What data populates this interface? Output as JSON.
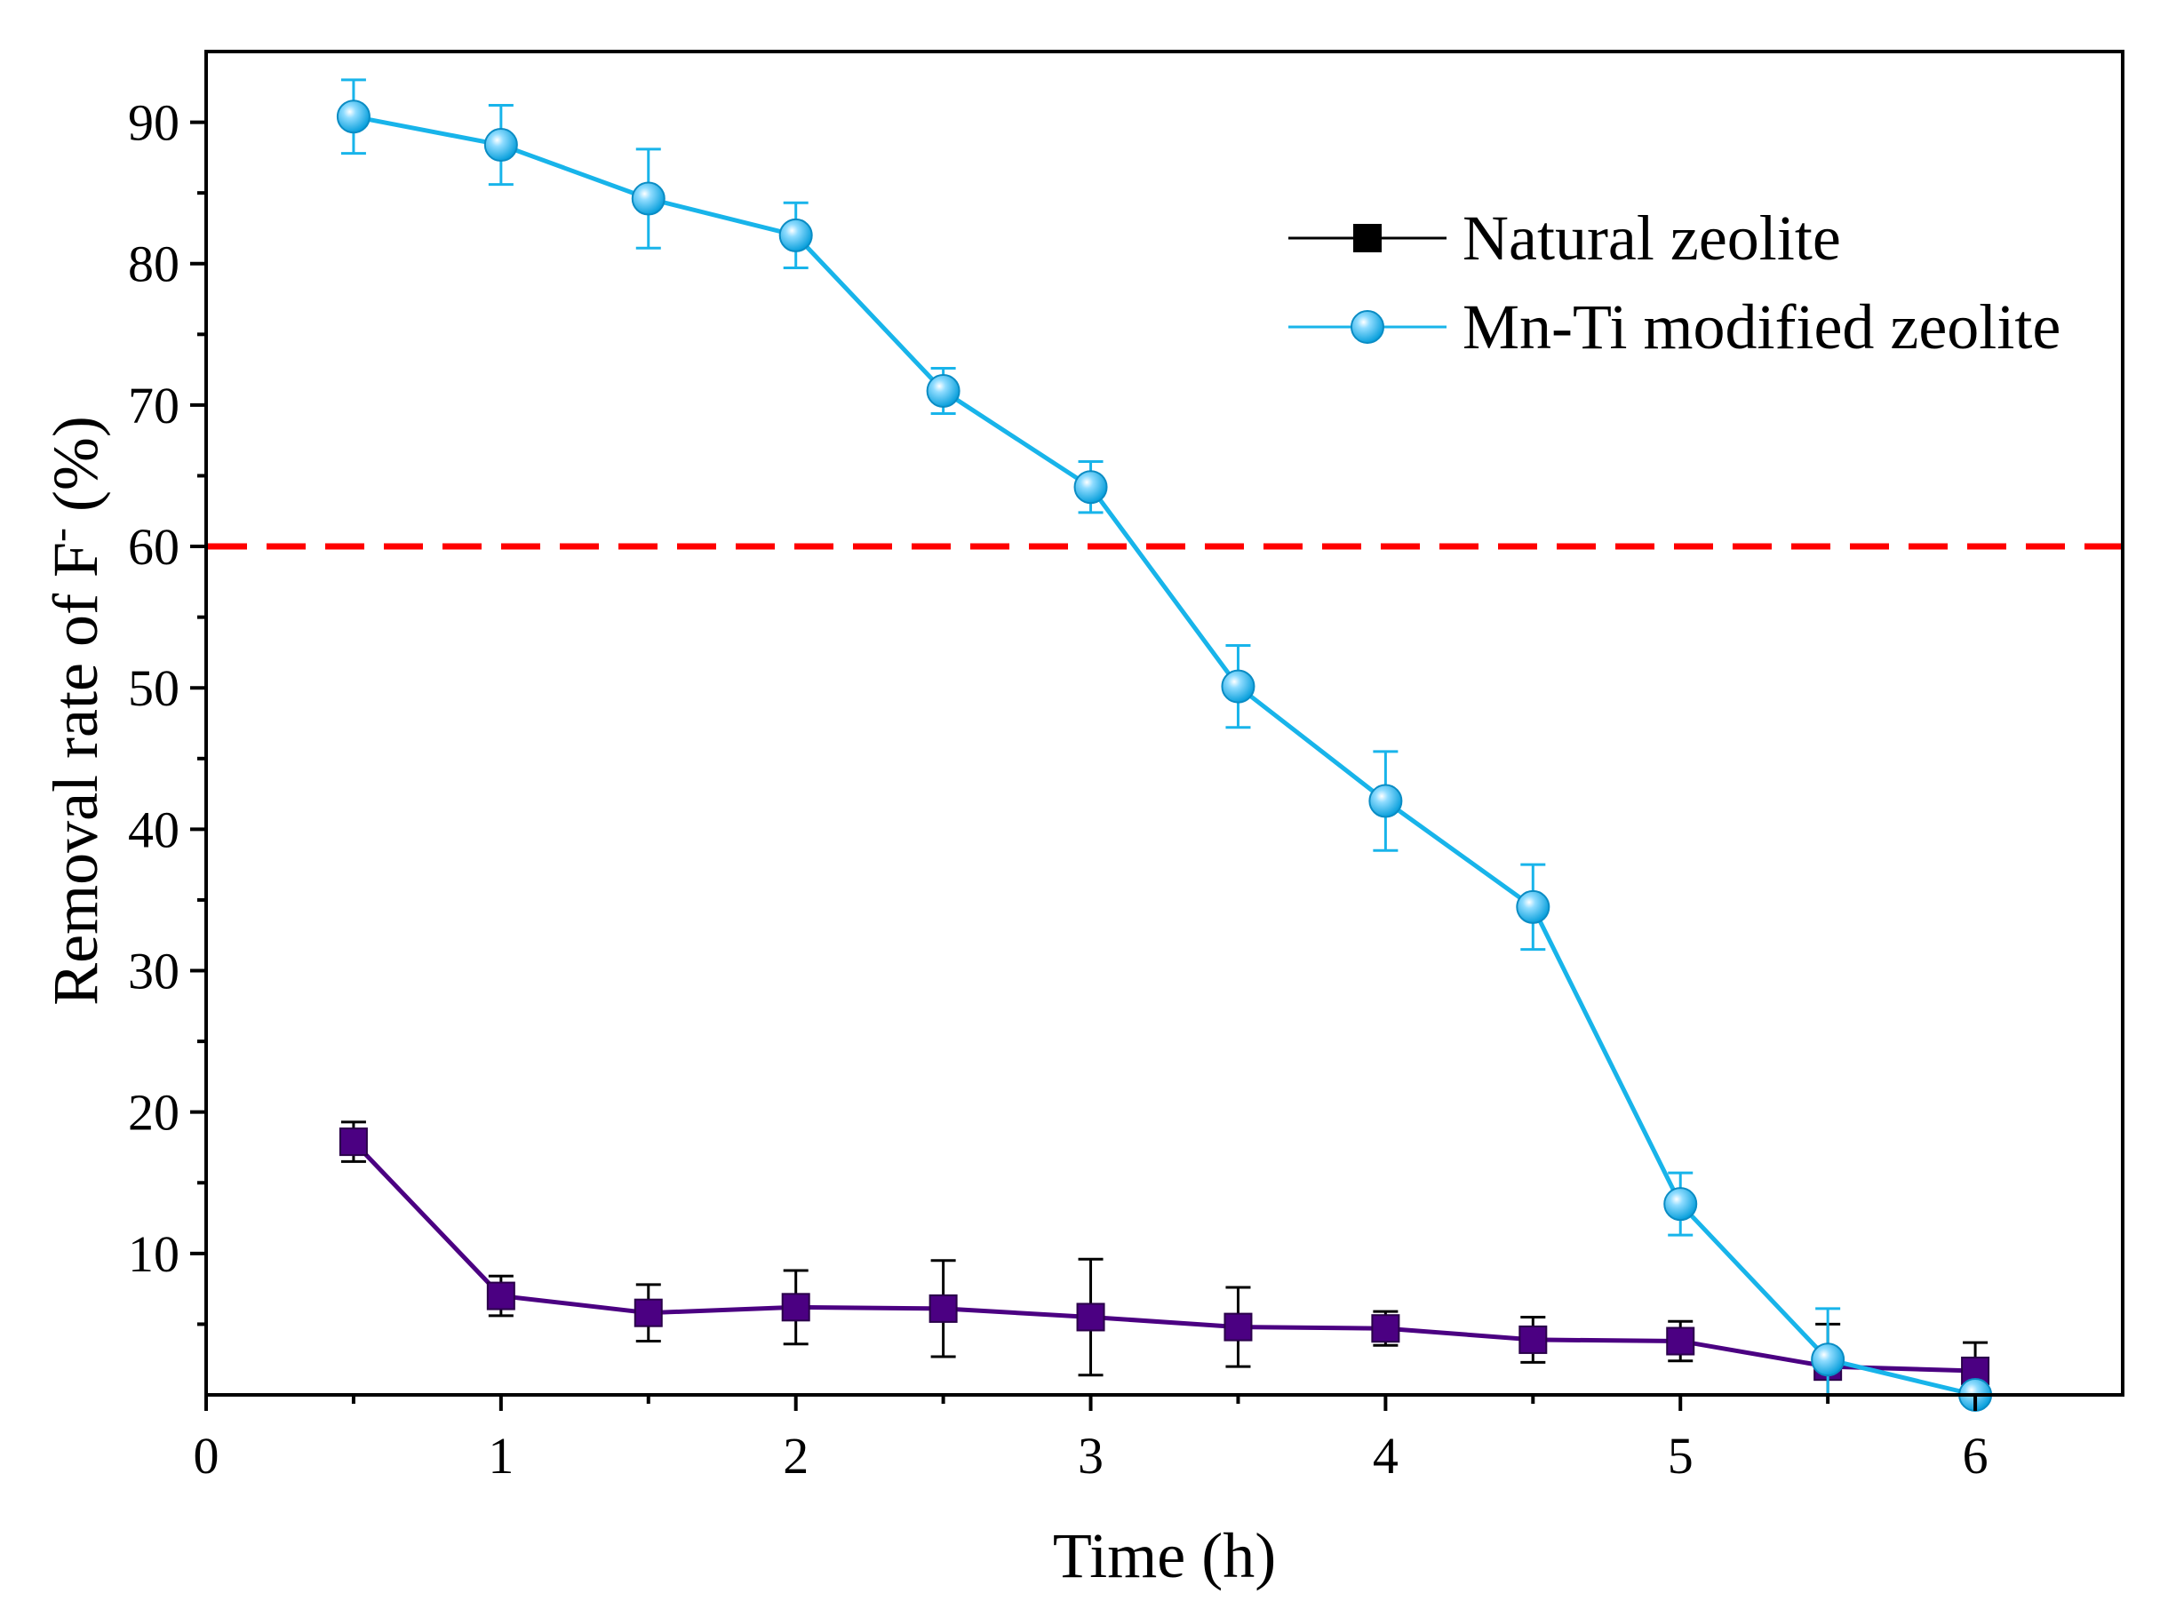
{
  "chart_data": {
    "type": "line",
    "title": "",
    "xlabel": "Time (h)",
    "ylabel_main": "Removal rate of F",
    "ylabel_sup": "-",
    "ylabel_tail": " (%)",
    "xlim": [
      0,
      6.5
    ],
    "ylim": [
      0,
      95
    ],
    "x_ticks": [
      0,
      1,
      2,
      3,
      4,
      5,
      6
    ],
    "x_tick_labels": [
      "0",
      "1",
      "2",
      "3",
      "4",
      "5",
      "6"
    ],
    "y_ticks": [
      10,
      20,
      30,
      40,
      50,
      60,
      70,
      80,
      90
    ],
    "y_tick_labels": [
      "10",
      "20",
      "30",
      "40",
      "50",
      "60",
      "70",
      "80",
      "90"
    ],
    "grid": false,
    "legend_position": "top-right",
    "reference_line": {
      "y": 60,
      "color": "#ff0000",
      "style": "dashed"
    },
    "x": [
      0.5,
      1,
      1.5,
      2,
      2.5,
      3,
      3.5,
      4,
      4.5,
      5,
      5.5,
      6
    ],
    "series": [
      {
        "name": "Natural zeolite",
        "marker": "square",
        "line_color": "#4b0082",
        "marker_color": "#4b0082",
        "legend_color": "#000000",
        "values": [
          17.9,
          7.0,
          5.8,
          6.2,
          6.1,
          5.5,
          4.8,
          4.7,
          3.9,
          3.8,
          2.0,
          1.7
        ],
        "errors": [
          1.4,
          1.4,
          2.0,
          2.6,
          3.4,
          4.1,
          2.8,
          1.2,
          1.6,
          1.4,
          3.0,
          2.0
        ]
      },
      {
        "name": "Mn-Ti modified zeolite",
        "marker": "circle",
        "line_color": "#18b4ea",
        "marker_color": "#18b4ea",
        "legend_color": "#18b4ea",
        "values": [
          90.4,
          88.4,
          84.6,
          82.0,
          71.0,
          64.2,
          50.1,
          42.0,
          34.5,
          13.5,
          2.5,
          0.0
        ],
        "errors": [
          2.6,
          2.8,
          3.5,
          2.3,
          1.6,
          1.8,
          2.9,
          3.5,
          3.0,
          2.2,
          3.6,
          0.0
        ]
      }
    ]
  }
}
